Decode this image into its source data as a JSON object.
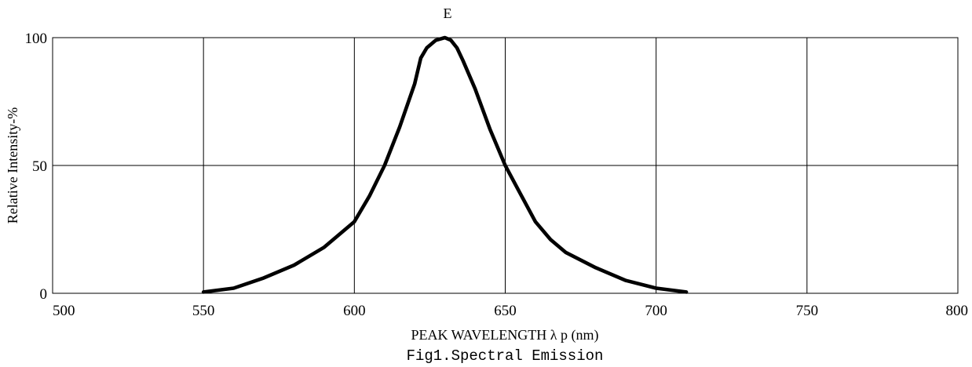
{
  "chart_data": {
    "type": "line",
    "title": "E",
    "xlabel": "PEAK WAVELENGTH λ p (nm)",
    "ylabel": "Relative Intensity-%",
    "caption": "Fig1.Spectral  Emission",
    "xlim": [
      500,
      800
    ],
    "ylim": [
      0,
      100
    ],
    "x_ticks": [
      500,
      550,
      600,
      650,
      700,
      750,
      800
    ],
    "y_ticks": [
      0,
      50,
      100
    ],
    "x_tick_labels": [
      "500",
      "550",
      "600",
      "650",
      "700",
      "750",
      "800"
    ],
    "y_tick_labels": [
      "0",
      "50",
      "100"
    ],
    "grid": true,
    "line_color": "#000000",
    "series": [
      {
        "x": [
          550,
          560,
          570,
          580,
          590,
          600,
          605,
          610,
          615,
          620,
          622,
          624,
          627,
          630,
          632,
          634,
          636,
          640,
          645,
          650,
          655,
          660,
          665,
          670,
          680,
          690,
          700,
          710
        ],
        "y": [
          0.5,
          2,
          6,
          11,
          18,
          28,
          38,
          50,
          65,
          82,
          92,
          96,
          99,
          100,
          99,
          96,
          91,
          80,
          64,
          50,
          39,
          28,
          21,
          16,
          10,
          5,
          2,
          0.5
        ]
      }
    ]
  }
}
